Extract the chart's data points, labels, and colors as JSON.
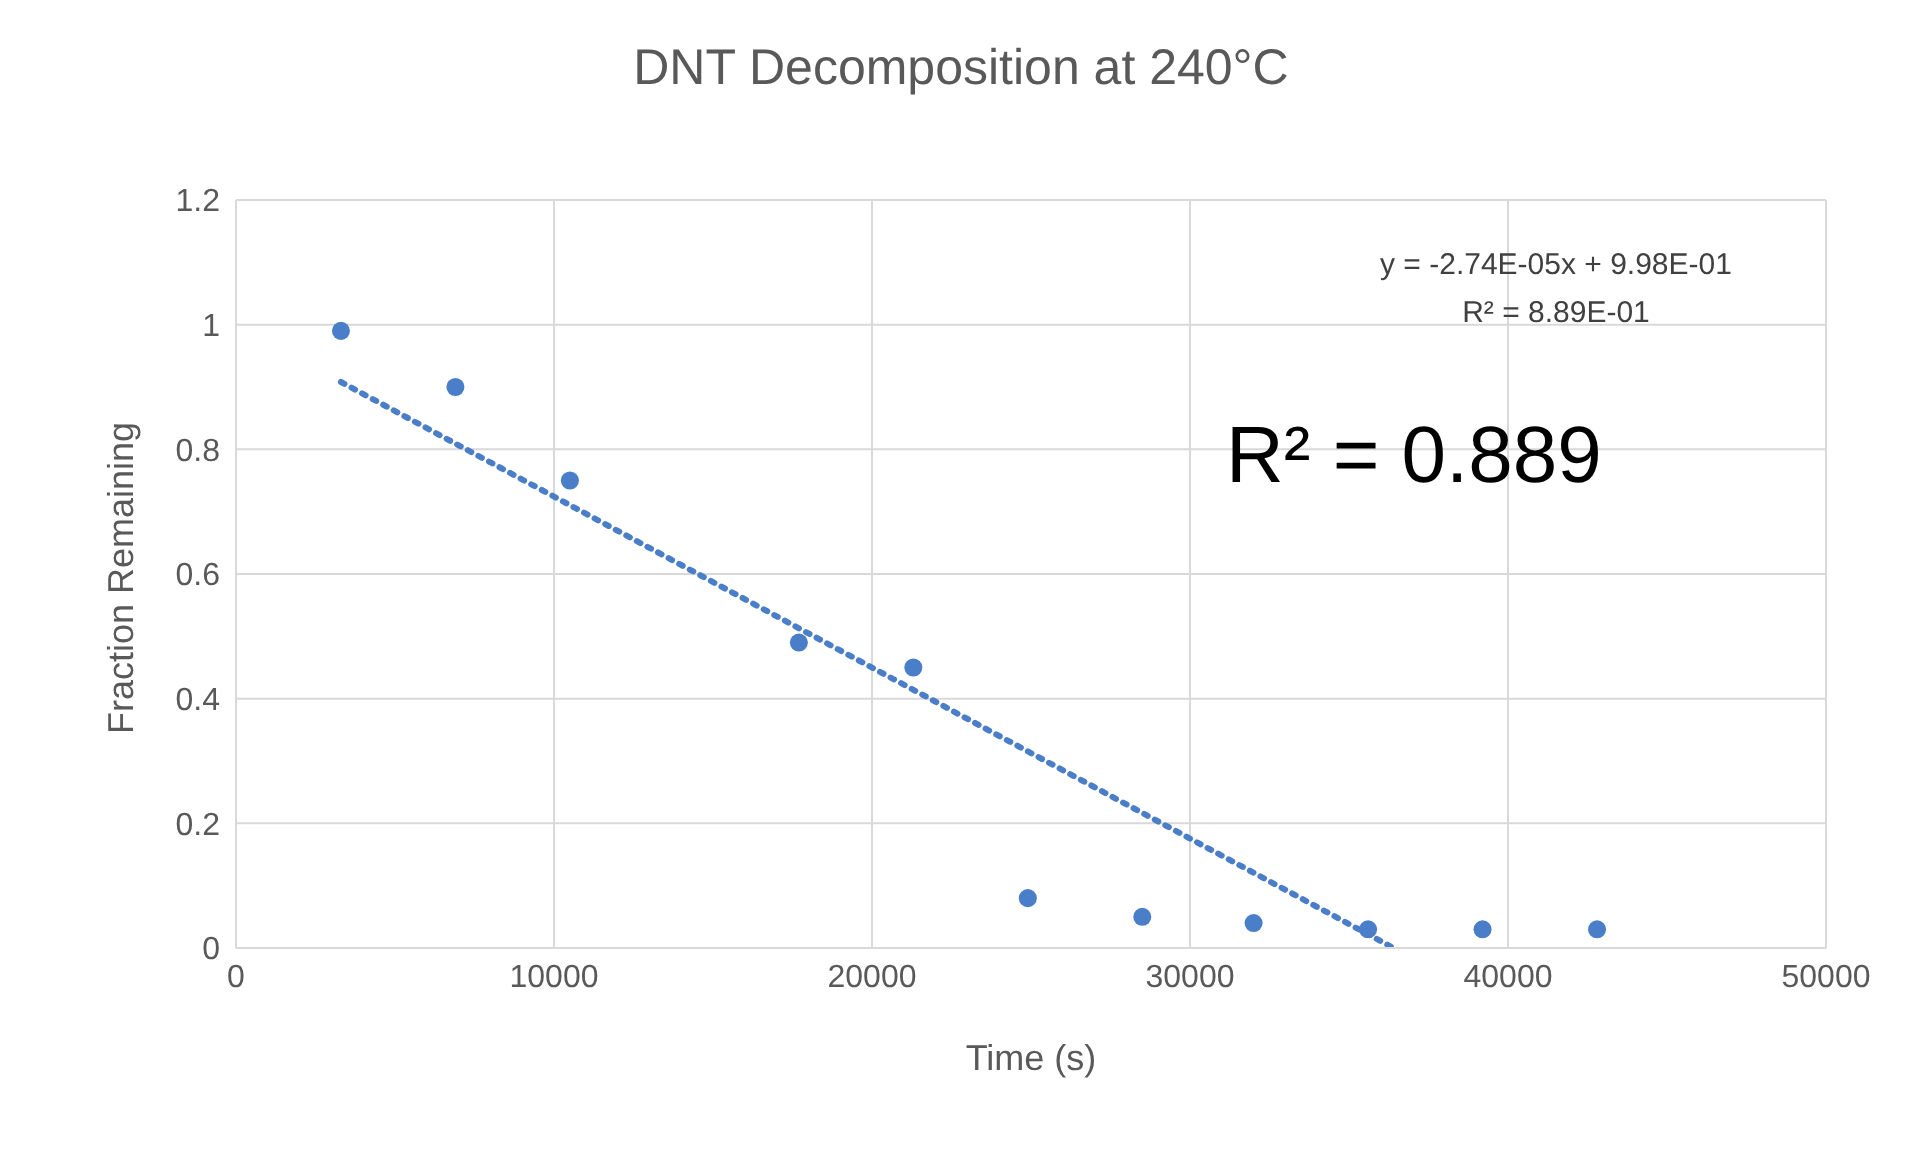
{
  "chart_data": {
    "type": "scatter",
    "title": "DNT Decomposition at 240°C",
    "xlabel": "Time (s)",
    "ylabel": "Fraction Remaining",
    "xlim": [
      0,
      50000
    ],
    "xticks": [
      0,
      10000,
      20000,
      30000,
      40000,
      50000
    ],
    "ylim": [
      0,
      1.2
    ],
    "yticks": [
      0,
      0.2,
      0.4,
      0.6,
      0.8,
      1,
      1.2
    ],
    "grid": true,
    "legend": false,
    "marker": "circle",
    "annotations": [
      "y = -2.74E-05x + 9.98E-01",
      "R² = 8.89E-01",
      "R² = 0.889"
    ],
    "series": [
      {
        "color": "#4a7ec8",
        "x": [
          3300,
          6900,
          10500,
          17700,
          21300,
          24900,
          28500,
          32000,
          35600,
          39200,
          42800
        ],
        "values": [
          0.99,
          0.9,
          0.75,
          0.49,
          0.45,
          0.08,
          0.05,
          0.04,
          0.03,
          0.03,
          0.03
        ]
      },
      {
        "type": "line",
        "color": "#4a7ec8",
        "line_style": "dotted",
        "marker": "none",
        "x": [
          3300,
          36400
        ],
        "values": [
          0.908,
          0
        ]
      }
    ]
  }
}
